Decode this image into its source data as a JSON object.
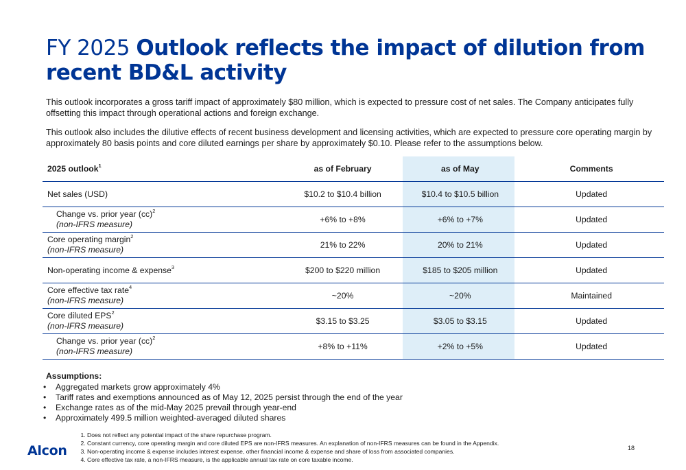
{
  "title": {
    "prefix": "FY 2025",
    "main": "Outlook reflects the impact of dilution from recent BD&L activity"
  },
  "intro": {
    "p1": "This outlook incorporates a gross tariff impact of approximately $80 million, which is expected to pressure cost of net sales. The Company anticipates fully offsetting this impact through operational actions and foreign exchange.",
    "p2": "This outlook also includes the dilutive effects of recent business development and licensing activities, which are expected to pressure core operating margin by approximately 80 basis points and core diluted earnings per share by approximately $0.10. Please refer to the assumptions below."
  },
  "table": {
    "headers": {
      "label": "2025 outlook",
      "label_sup": "1",
      "feb": "as of February",
      "may": "as of May",
      "comments": "Comments"
    },
    "rows": [
      {
        "label": "Net sales (USD)",
        "sup": "",
        "sub": "",
        "feb": "$10.2 to $10.4 billion",
        "may": "$10.4 to $10.5 billion",
        "comment": "Updated"
      },
      {
        "label": "Change vs. prior year (cc)",
        "sup": "2",
        "sub": "(non-IFRS measure)",
        "feb": "+6% to +8%",
        "may": "+6% to +7%",
        "comment": "Updated"
      },
      {
        "label": "Core operating margin",
        "sup": "2",
        "sub": "(non-IFRS measure)",
        "feb": "21% to 22%",
        "may": "20% to 21%",
        "comment": "Updated"
      },
      {
        "label": "Non-operating income & expense",
        "sup": "3",
        "sub": "",
        "feb": "$200 to $220 million",
        "may": "$185 to $205 million",
        "comment": "Updated"
      },
      {
        "label": "Core effective tax rate",
        "sup": "4",
        "sub": "(non-IFRS measure)",
        "feb": "~20%",
        "may": "~20%",
        "comment": "Maintained"
      },
      {
        "label": "Core diluted EPS",
        "sup": "2",
        "sub": "(non-IFRS measure)",
        "feb": "$3.15 to $3.25",
        "may": "$3.05 to $3.15",
        "comment": "Updated"
      },
      {
        "label": "Change vs. prior year (cc)",
        "sup": "2",
        "sub": "(non-IFRS measure)",
        "feb": "+8% to +11%",
        "may": "+2% to +5%",
        "comment": "Updated"
      }
    ]
  },
  "assumptions": {
    "heading": "Assumptions:",
    "items": [
      "Aggregated markets grow approximately 4%",
      "Tariff rates and exemptions announced as of May 12, 2025 persist through the end of the year",
      "Exchange rates as of the mid-May 2025 prevail through year-end",
      "Approximately 499.5 million weighted-averaged diluted shares"
    ]
  },
  "footnotes": [
    "Does not reflect any potential impact of the share repurchase program.",
    "Constant currency, core operating margin and core diluted EPS are non-IFRS measures.  An explanation of non-IFRS measures can be found in the Appendix.",
    "Non-operating income & expense includes interest expense, other financial income & expense and share of loss from associated companies.",
    "Core effective tax rate, a non-IFRS measure, is the applicable annual tax rate on core taxable income."
  ],
  "logo": "Alcon",
  "page_number": "18",
  "colors": {
    "brand_blue": "#003595",
    "highlight": "#deeef8"
  }
}
